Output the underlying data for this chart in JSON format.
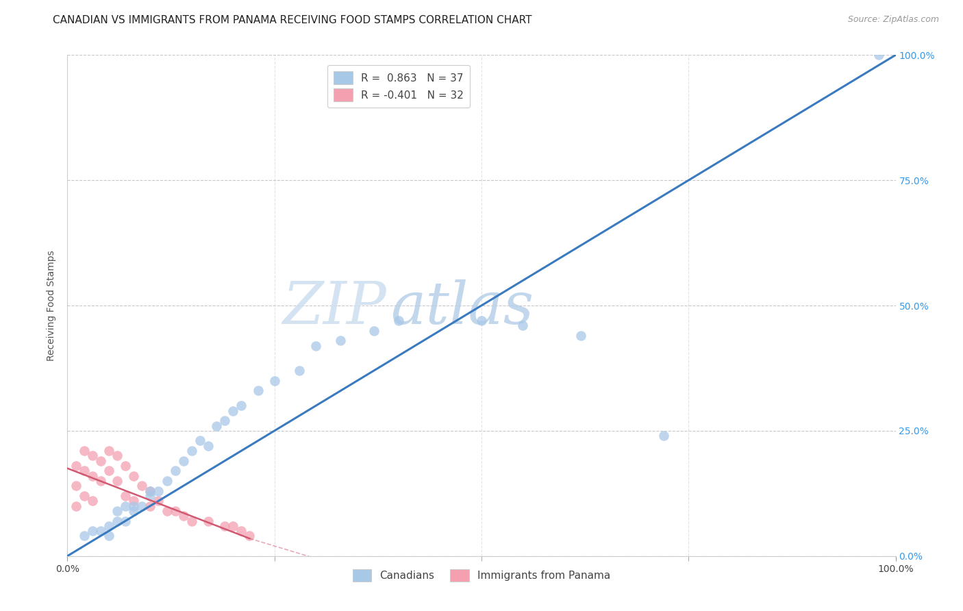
{
  "title": "CANADIAN VS IMMIGRANTS FROM PANAMA RECEIVING FOOD STAMPS CORRELATION CHART",
  "source": "Source: ZipAtlas.com",
  "ylabel": "Receiving Food Stamps",
  "xlim": [
    0,
    1.0
  ],
  "ylim": [
    0,
    1.0
  ],
  "ytick_labels": [
    "0.0%",
    "25.0%",
    "50.0%",
    "75.0%",
    "100.0%"
  ],
  "ytick_values": [
    0.0,
    0.25,
    0.5,
    0.75,
    1.0
  ],
  "xtick_show": [
    0.0,
    0.25,
    0.5,
    0.75,
    1.0
  ],
  "watermark_zip": "ZIP",
  "watermark_atlas": "atlas",
  "legend_label1": "R =  0.863   N = 37",
  "legend_label2": "R = -0.401   N = 32",
  "blue_scatter_color": "#a8c8e8",
  "blue_line_color": "#3a7abf",
  "pink_scatter_color": "#f4a0b0",
  "pink_line_color": "#d05870",
  "blue_line_x": [
    0.0,
    1.0
  ],
  "blue_line_y": [
    0.0,
    1.0
  ],
  "pink_line_x": [
    0.0,
    0.22
  ],
  "pink_line_y": [
    0.175,
    0.035
  ],
  "canadians_x": [
    0.02,
    0.03,
    0.04,
    0.05,
    0.05,
    0.06,
    0.06,
    0.07,
    0.07,
    0.08,
    0.08,
    0.09,
    0.1,
    0.1,
    0.11,
    0.12,
    0.13,
    0.14,
    0.15,
    0.16,
    0.17,
    0.18,
    0.19,
    0.2,
    0.21,
    0.23,
    0.25,
    0.28,
    0.3,
    0.33,
    0.37,
    0.4,
    0.5,
    0.55,
    0.62,
    0.72,
    0.98
  ],
  "canadians_y": [
    0.04,
    0.05,
    0.05,
    0.04,
    0.06,
    0.07,
    0.09,
    0.07,
    0.1,
    0.09,
    0.1,
    0.1,
    0.12,
    0.13,
    0.13,
    0.15,
    0.17,
    0.19,
    0.21,
    0.23,
    0.22,
    0.26,
    0.27,
    0.29,
    0.3,
    0.33,
    0.35,
    0.37,
    0.42,
    0.43,
    0.45,
    0.47,
    0.47,
    0.46,
    0.44,
    0.24,
    1.0
  ],
  "panama_x": [
    0.01,
    0.01,
    0.01,
    0.02,
    0.02,
    0.02,
    0.03,
    0.03,
    0.03,
    0.04,
    0.04,
    0.05,
    0.05,
    0.06,
    0.06,
    0.07,
    0.07,
    0.08,
    0.08,
    0.09,
    0.1,
    0.1,
    0.11,
    0.12,
    0.13,
    0.14,
    0.15,
    0.17,
    0.19,
    0.2,
    0.21,
    0.22
  ],
  "panama_y": [
    0.18,
    0.14,
    0.1,
    0.21,
    0.17,
    0.12,
    0.2,
    0.16,
    0.11,
    0.19,
    0.15,
    0.21,
    0.17,
    0.2,
    0.15,
    0.18,
    0.12,
    0.16,
    0.11,
    0.14,
    0.13,
    0.1,
    0.11,
    0.09,
    0.09,
    0.08,
    0.07,
    0.07,
    0.06,
    0.06,
    0.05,
    0.04
  ],
  "background_color": "#ffffff",
  "grid_color": "#c8c8c8",
  "title_fontsize": 11,
  "source_fontsize": 9,
  "axis_label_fontsize": 10,
  "tick_fontsize": 10,
  "legend_fontsize": 11,
  "marker_size": 110,
  "legend_color_r": "#3a7abf"
}
